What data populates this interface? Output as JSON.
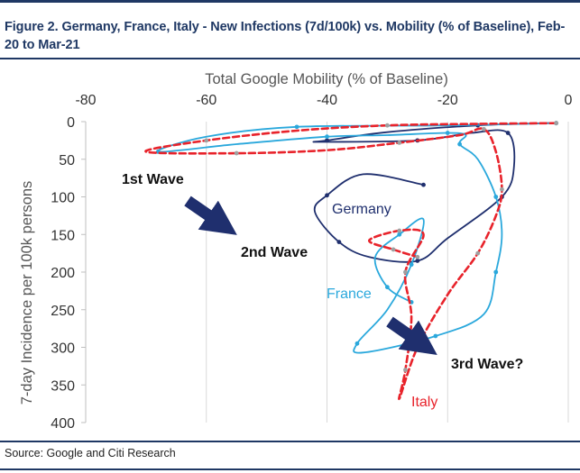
{
  "figure": {
    "title": "Figure 2. Germany, France, Italy - New Infections (7d/100k) vs. Mobility (% of Baseline), Feb-20 to Mar-21",
    "source": "Source: Google and Citi Research"
  },
  "chart_data": {
    "type": "line",
    "xlabel": "Total Google Mobility (% of Baseline)",
    "ylabel": "7-day Incidence per 100k persons",
    "xlim": [
      -80,
      0
    ],
    "ylim": [
      0,
      400
    ],
    "x_ticks": [
      -80,
      -60,
      -40,
      -20,
      0
    ],
    "y_ticks": [
      0,
      50,
      100,
      150,
      200,
      250,
      300,
      350,
      400
    ],
    "x_axis_position": "top",
    "y_axis_inverted": true,
    "grid": "vertical",
    "series": [
      {
        "name": "Germany",
        "label": "Germany",
        "color": "#1f2f6e",
        "dash": "solid",
        "points": [
          [
            -2,
            2
          ],
          [
            -4,
            2
          ],
          [
            -15,
            5
          ],
          [
            -30,
            14
          ],
          [
            -40,
            25
          ],
          [
            -41,
            27
          ],
          [
            -25,
            25
          ],
          [
            -16,
            15
          ],
          [
            -10,
            15
          ],
          [
            -9,
            60
          ],
          [
            -11,
            100
          ],
          [
            -20,
            155
          ],
          [
            -25,
            185
          ],
          [
            -33,
            180
          ],
          [
            -38,
            160
          ],
          [
            -42,
            120
          ],
          [
            -40,
            98
          ],
          [
            -34,
            70
          ],
          [
            -24,
            84
          ]
        ]
      },
      {
        "name": "France",
        "label": "France",
        "color": "#2aa8dc",
        "dash": "solid",
        "points": [
          [
            -2,
            2
          ],
          [
            -20,
            5
          ],
          [
            -45,
            7
          ],
          [
            -60,
            20
          ],
          [
            -68,
            40
          ],
          [
            -55,
            30
          ],
          [
            -40,
            20
          ],
          [
            -30,
            18
          ],
          [
            -20,
            15
          ],
          [
            -17,
            18
          ],
          [
            -18,
            30
          ],
          [
            -15,
            50
          ],
          [
            -12,
            100
          ],
          [
            -11,
            150
          ],
          [
            -12,
            200
          ],
          [
            -14,
            256
          ],
          [
            -22,
            285
          ],
          [
            -34,
            307
          ],
          [
            -35,
            295
          ],
          [
            -30,
            250
          ],
          [
            -26,
            190
          ],
          [
            -24,
            130
          ],
          [
            -28,
            150
          ],
          [
            -32,
            180
          ],
          [
            -30,
            220
          ],
          [
            -26,
            240
          ]
        ]
      },
      {
        "name": "Italy",
        "label": "Italy",
        "color": "#e8232b",
        "dash": "dashed",
        "points": [
          [
            -2,
            2
          ],
          [
            -15,
            3
          ],
          [
            -30,
            5
          ],
          [
            -45,
            12
          ],
          [
            -60,
            25
          ],
          [
            -70,
            40
          ],
          [
            -55,
            42
          ],
          [
            -40,
            38
          ],
          [
            -28,
            28
          ],
          [
            -18,
            18
          ],
          [
            -14,
            10
          ],
          [
            -12,
            40
          ],
          [
            -11,
            90
          ],
          [
            -12,
            125
          ],
          [
            -15,
            175
          ],
          [
            -20,
            230
          ],
          [
            -25,
            300
          ],
          [
            -28,
            368
          ],
          [
            -27,
            330
          ],
          [
            -26,
            260
          ],
          [
            -27,
            200
          ],
          [
            -24,
            150
          ],
          [
            -28,
            145
          ],
          [
            -33,
            158
          ],
          [
            -29,
            170
          ],
          [
            -25,
            180
          ]
        ]
      }
    ],
    "annotations": [
      {
        "text": "1st Wave",
        "color": "#111111"
      },
      {
        "text": "2nd Wave",
        "color": "#111111"
      },
      {
        "text": "3rd Wave?",
        "color": "#111111"
      }
    ]
  }
}
